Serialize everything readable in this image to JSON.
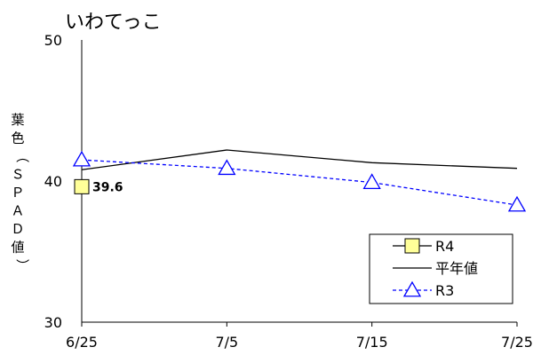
{
  "chart_data": {
    "type": "line",
    "title": "いわてっこ",
    "ylabel": "葉色（ＳＰＡＤ値）",
    "xlabel": "",
    "x": [
      "6/25",
      "7/5",
      "7/15",
      "7/25"
    ],
    "ylim": [
      30,
      50
    ],
    "yticks": [
      30,
      40,
      50
    ],
    "grid": false,
    "legend_position": "bottom-right",
    "series": [
      {
        "name": "R4",
        "values": [
          39.6,
          null,
          null,
          null
        ],
        "marker": "square",
        "line": "solid",
        "color": "#000000",
        "marker_fill": "#ffff99",
        "data_label": "39.6"
      },
      {
        "name": "平年値",
        "values": [
          40.8,
          42.2,
          41.3,
          40.9
        ],
        "marker": "none",
        "line": "solid",
        "color": "#000000"
      },
      {
        "name": "R3",
        "values": [
          41.5,
          40.9,
          39.9,
          38.3
        ],
        "marker": "triangle",
        "line": "dashed",
        "color": "#0000ff",
        "marker_fill": "#ffffff"
      }
    ]
  }
}
